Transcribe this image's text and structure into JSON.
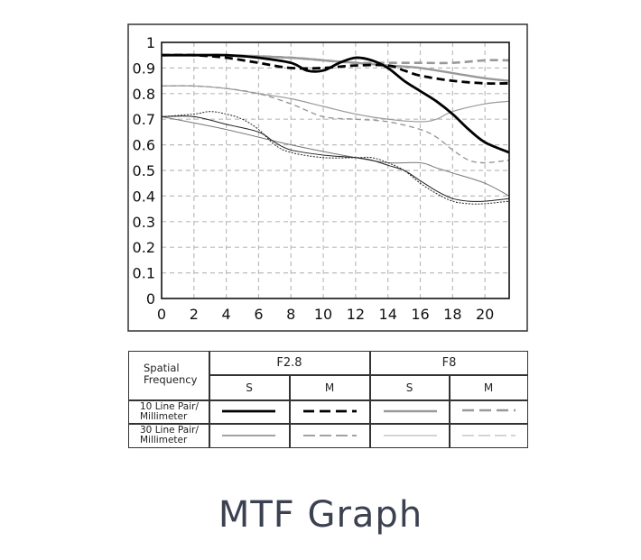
{
  "chart_data": {
    "type": "line",
    "title": "",
    "xlabel": "",
    "ylabel": "",
    "xlim": [
      0,
      21.5
    ],
    "ylim": [
      0,
      1
    ],
    "xticks": [
      "0",
      "2",
      "4",
      "6",
      "8",
      "10",
      "12",
      "14",
      "16",
      "18",
      "20"
    ],
    "yticks": [
      "0",
      "0.1",
      "0.2",
      "0.3",
      "0.4",
      "0.5",
      "0.6",
      "0.7",
      "0.8",
      "0.9",
      "1"
    ],
    "grid": true,
    "series": [
      {
        "key": "f28_10_s",
        "color": "#000000",
        "width": 2.8,
        "dash": "",
        "points": [
          [
            0,
            0.95
          ],
          [
            2,
            0.95
          ],
          [
            4,
            0.95
          ],
          [
            6,
            0.94
          ],
          [
            8,
            0.92
          ],
          [
            9,
            0.89
          ],
          [
            10,
            0.89
          ],
          [
            11,
            0.92
          ],
          [
            12,
            0.94
          ],
          [
            13,
            0.93
          ],
          [
            14,
            0.9
          ],
          [
            15,
            0.85
          ],
          [
            16,
            0.81
          ],
          [
            17,
            0.77
          ],
          [
            18,
            0.72
          ],
          [
            19,
            0.66
          ],
          [
            20,
            0.61
          ],
          [
            21.5,
            0.57
          ]
        ]
      },
      {
        "key": "f28_10_m",
        "color": "#000000",
        "width": 2.8,
        "dash": "9,5",
        "points": [
          [
            0,
            0.95
          ],
          [
            2,
            0.95
          ],
          [
            4,
            0.94
          ],
          [
            6,
            0.92
          ],
          [
            8,
            0.9
          ],
          [
            10,
            0.9
          ],
          [
            12,
            0.91
          ],
          [
            14,
            0.91
          ],
          [
            15,
            0.89
          ],
          [
            16,
            0.87
          ],
          [
            18,
            0.85
          ],
          [
            20,
            0.84
          ],
          [
            21.5,
            0.84
          ]
        ]
      },
      {
        "key": "f8_10_s",
        "color": "#999999",
        "width": 2.4,
        "dash": "",
        "points": [
          [
            0,
            0.95
          ],
          [
            4,
            0.95
          ],
          [
            8,
            0.94
          ],
          [
            10,
            0.93
          ],
          [
            12,
            0.92
          ],
          [
            14,
            0.91
          ],
          [
            16,
            0.9
          ],
          [
            18,
            0.88
          ],
          [
            20,
            0.86
          ],
          [
            21.5,
            0.85
          ]
        ]
      },
      {
        "key": "f8_10_m",
        "color": "#999999",
        "width": 2.6,
        "dash": "9,5",
        "points": [
          [
            0,
            0.95
          ],
          [
            4,
            0.95
          ],
          [
            8,
            0.94
          ],
          [
            10,
            0.93
          ],
          [
            12,
            0.92
          ],
          [
            14,
            0.92
          ],
          [
            16,
            0.92
          ],
          [
            18,
            0.92
          ],
          [
            20,
            0.93
          ],
          [
            21.5,
            0.93
          ]
        ]
      },
      {
        "key": "f28_30_s",
        "color": "#222222",
        "width": 1.0,
        "dash": "",
        "points": [
          [
            0,
            0.71
          ],
          [
            2,
            0.71
          ],
          [
            4,
            0.68
          ],
          [
            6,
            0.65
          ],
          [
            7,
            0.61
          ],
          [
            8,
            0.58
          ],
          [
            10,
            0.56
          ],
          [
            12,
            0.55
          ],
          [
            13,
            0.54
          ],
          [
            14,
            0.52
          ],
          [
            15,
            0.5
          ],
          [
            16,
            0.46
          ],
          [
            17,
            0.42
          ],
          [
            18,
            0.39
          ],
          [
            19,
            0.38
          ],
          [
            20,
            0.38
          ],
          [
            21.5,
            0.39
          ]
        ]
      },
      {
        "key": "f28_30_m",
        "color": "#222222",
        "width": 1.0,
        "dash": "2,1.5",
        "points": [
          [
            0,
            0.71
          ],
          [
            2,
            0.72
          ],
          [
            3,
            0.73
          ],
          [
            4,
            0.72
          ],
          [
            5,
            0.7
          ],
          [
            6,
            0.66
          ],
          [
            7,
            0.6
          ],
          [
            8,
            0.57
          ],
          [
            10,
            0.55
          ],
          [
            12,
            0.55
          ],
          [
            13,
            0.55
          ],
          [
            14,
            0.53
          ],
          [
            15,
            0.5
          ],
          [
            16,
            0.45
          ],
          [
            17,
            0.41
          ],
          [
            18,
            0.38
          ],
          [
            19,
            0.37
          ],
          [
            20,
            0.37
          ],
          [
            21.5,
            0.38
          ]
        ]
      },
      {
        "key": "f8_30_s",
        "color": "#999999",
        "width": 1.2,
        "dash": "",
        "points": [
          [
            0,
            0.83
          ],
          [
            2,
            0.83
          ],
          [
            4,
            0.82
          ],
          [
            6,
            0.8
          ],
          [
            8,
            0.78
          ],
          [
            10,
            0.75
          ],
          [
            12,
            0.72
          ],
          [
            14,
            0.7
          ],
          [
            16,
            0.69
          ],
          [
            17,
            0.7
          ],
          [
            18,
            0.73
          ],
          [
            20,
            0.76
          ],
          [
            21.5,
            0.77
          ]
        ]
      },
      {
        "key": "f8_30_m",
        "color": "#999999",
        "width": 1.4,
        "dash": "6,4",
        "points": [
          [
            0,
            0.83
          ],
          [
            2,
            0.83
          ],
          [
            4,
            0.82
          ],
          [
            6,
            0.8
          ],
          [
            8,
            0.76
          ],
          [
            10,
            0.71
          ],
          [
            12,
            0.7
          ],
          [
            14,
            0.69
          ],
          [
            16,
            0.66
          ],
          [
            17,
            0.63
          ],
          [
            18,
            0.58
          ],
          [
            19,
            0.54
          ],
          [
            20,
            0.53
          ],
          [
            21.5,
            0.54
          ]
        ]
      },
      {
        "key": "f8_30_s_b",
        "color": "#777777",
        "width": 1.0,
        "dash": "",
        "points": [
          [
            0,
            0.71
          ],
          [
            4,
            0.66
          ],
          [
            8,
            0.6
          ],
          [
            12,
            0.55
          ],
          [
            14,
            0.53
          ],
          [
            16,
            0.53
          ],
          [
            17,
            0.51
          ],
          [
            18,
            0.49
          ],
          [
            20,
            0.45
          ],
          [
            21.5,
            0.4
          ]
        ]
      }
    ]
  },
  "legend": {
    "spatial_label_line1": "Spatial",
    "spatial_label_line2": "Frequency",
    "group_f28": "F2.8",
    "group_f8": "F8",
    "col_s1": "S",
    "col_m1": "M",
    "col_s2": "S",
    "col_m2": "M",
    "row1_line1": "10 Line Pair/",
    "row1_line2": "Millimeter",
    "row2_line1": "30 Line Pair/",
    "row2_line2": "Millimeter"
  },
  "caption": "MTF Graph"
}
